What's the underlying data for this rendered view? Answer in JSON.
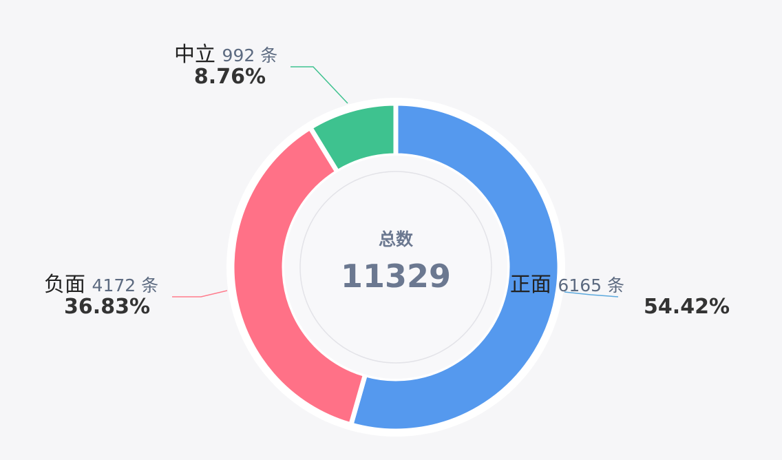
{
  "chart_data": {
    "type": "pie",
    "variant": "donut",
    "center": {
      "title": "总数",
      "value": "11329"
    },
    "unit": "条",
    "slices": [
      {
        "name": "正面",
        "value": 6165,
        "percent_label": "54.42%",
        "color": "#5599ee"
      },
      {
        "name": "负面",
        "value": 4172,
        "percent_label": "36.83%",
        "color": "#ff7187"
      },
      {
        "name": "中立",
        "value": 992,
        "percent_label": "8.76%",
        "color": "#3ec28f"
      }
    ]
  }
}
